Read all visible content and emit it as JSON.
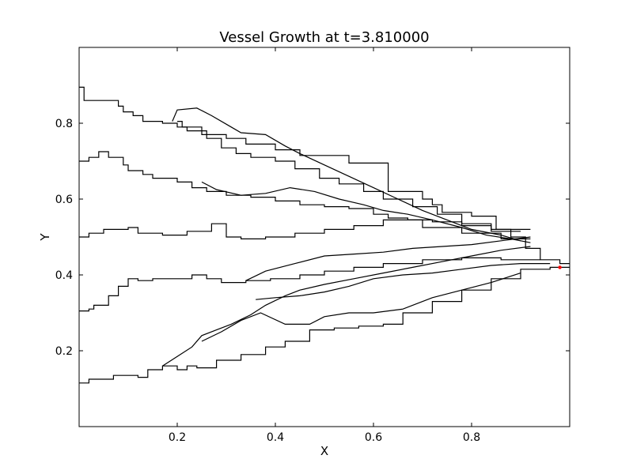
{
  "chart_data": {
    "type": "line",
    "title": "Vessel Growth at t=3.810000",
    "xlabel": "X",
    "ylabel": "Y",
    "xlim": [
      0,
      1
    ],
    "ylim": [
      0,
      1
    ],
    "xticks": [
      0.2,
      0.4,
      0.6,
      0.8
    ],
    "yticks": [
      0.2,
      0.4,
      0.6,
      0.8
    ],
    "xtick_labels": [
      "0.2",
      "0.4",
      "0.6",
      "0.8"
    ],
    "ytick_labels": [
      "0.2",
      "0.4",
      "0.6",
      "0.8"
    ],
    "grid": false,
    "line_color": "#000000",
    "tip_color": "#ff0000",
    "series": [
      {
        "x": [
          0.0,
          0.01,
          0.01,
          0.08,
          0.08,
          0.09,
          0.09,
          0.11,
          0.11,
          0.13,
          0.13,
          0.17,
          0.17,
          0.2,
          0.2,
          0.25,
          0.25,
          0.3,
          0.3,
          0.34,
          0.34,
          0.4,
          0.4,
          0.45,
          0.45,
          0.55,
          0.55,
          0.63,
          0.63,
          0.7,
          0.7,
          0.72,
          0.72,
          0.74,
          0.74,
          0.8,
          0.8,
          0.85,
          0.85,
          0.88,
          0.88,
          0.91,
          0.91,
          0.94,
          0.94,
          0.98,
          0.98,
          1.0
        ],
        "y": [
          0.895,
          0.895,
          0.86,
          0.86,
          0.845,
          0.845,
          0.83,
          0.83,
          0.82,
          0.82,
          0.805,
          0.805,
          0.8,
          0.8,
          0.79,
          0.79,
          0.77,
          0.77,
          0.76,
          0.76,
          0.745,
          0.745,
          0.73,
          0.73,
          0.715,
          0.715,
          0.695,
          0.695,
          0.62,
          0.62,
          0.6,
          0.6,
          0.585,
          0.585,
          0.565,
          0.565,
          0.555,
          0.555,
          0.52,
          0.52,
          0.5,
          0.5,
          0.47,
          0.47,
          0.44,
          0.44,
          0.43,
          0.43
        ]
      },
      {
        "x": [
          0.19,
          0.19,
          0.2,
          0.2,
          0.24,
          0.24,
          0.27,
          0.27,
          0.31,
          0.31,
          0.33,
          0.33,
          0.38,
          0.38,
          0.42,
          0.42,
          0.45,
          0.45,
          0.5,
          0.5,
          0.55,
          0.55,
          0.6,
          0.6,
          0.65,
          0.65,
          0.7,
          0.7,
          0.76,
          0.76,
          0.8,
          0.8,
          0.86,
          0.86,
          0.9,
          0.9
        ],
        "y": [
          0.805,
          0.805,
          0.835,
          0.835,
          0.84,
          0.84,
          0.82,
          0.82,
          0.79,
          0.79,
          0.775,
          0.775,
          0.77,
          0.77,
          0.74,
          0.74,
          0.72,
          0.72,
          0.69,
          0.69,
          0.66,
          0.66,
          0.63,
          0.63,
          0.6,
          0.6,
          0.57,
          0.57,
          0.54,
          0.54,
          0.52,
          0.52,
          0.505,
          0.505,
          0.49,
          0.49
        ]
      },
      {
        "x": [
          0.2,
          0.21,
          0.21,
          0.22,
          0.22,
          0.26,
          0.26,
          0.29,
          0.29,
          0.32,
          0.32,
          0.35,
          0.35,
          0.4,
          0.4,
          0.44,
          0.44,
          0.49,
          0.49,
          0.53,
          0.53,
          0.58,
          0.58,
          0.62,
          0.62,
          0.68,
          0.68,
          0.73,
          0.73,
          0.78,
          0.78,
          0.84,
          0.84,
          0.9
        ],
        "y": [
          0.805,
          0.805,
          0.79,
          0.79,
          0.78,
          0.78,
          0.76,
          0.76,
          0.735,
          0.735,
          0.72,
          0.72,
          0.71,
          0.71,
          0.7,
          0.7,
          0.68,
          0.68,
          0.655,
          0.655,
          0.64,
          0.64,
          0.62,
          0.62,
          0.6,
          0.6,
          0.58,
          0.58,
          0.56,
          0.56,
          0.535,
          0.535,
          0.515,
          0.515
        ]
      },
      {
        "x": [
          0.0,
          0.02,
          0.02,
          0.04,
          0.04,
          0.06,
          0.06,
          0.09,
          0.09,
          0.1,
          0.1,
          0.13,
          0.13,
          0.15,
          0.15,
          0.2,
          0.2,
          0.23,
          0.23,
          0.26,
          0.26,
          0.3,
          0.3,
          0.35,
          0.35,
          0.4,
          0.4,
          0.45,
          0.45,
          0.5,
          0.5,
          0.55,
          0.55,
          0.6,
          0.6,
          0.63,
          0.63,
          0.67,
          0.67,
          0.72,
          0.72,
          0.78,
          0.78,
          0.84,
          0.84,
          0.92
        ],
        "y": [
          0.7,
          0.7,
          0.71,
          0.71,
          0.725,
          0.725,
          0.71,
          0.71,
          0.69,
          0.69,
          0.675,
          0.675,
          0.665,
          0.665,
          0.655,
          0.655,
          0.645,
          0.645,
          0.63,
          0.63,
          0.62,
          0.62,
          0.61,
          0.61,
          0.605,
          0.605,
          0.595,
          0.595,
          0.585,
          0.585,
          0.58,
          0.58,
          0.575,
          0.575,
          0.56,
          0.56,
          0.55,
          0.55,
          0.545,
          0.545,
          0.54,
          0.54,
          0.53,
          0.53,
          0.52,
          0.52
        ]
      },
      {
        "x": [
          0.25,
          0.25,
          0.28,
          0.28,
          0.33,
          0.33,
          0.38,
          0.38,
          0.43,
          0.43,
          0.48,
          0.48,
          0.53,
          0.53,
          0.58,
          0.58,
          0.62,
          0.62,
          0.67,
          0.67,
          0.72,
          0.72,
          0.78,
          0.78,
          0.83,
          0.83,
          0.88,
          0.88,
          0.92
        ],
        "y": [
          0.645,
          0.645,
          0.625,
          0.625,
          0.61,
          0.61,
          0.615,
          0.615,
          0.63,
          0.63,
          0.62,
          0.62,
          0.6,
          0.6,
          0.585,
          0.585,
          0.57,
          0.57,
          0.56,
          0.56,
          0.545,
          0.545,
          0.525,
          0.525,
          0.505,
          0.505,
          0.495,
          0.495,
          0.485
        ]
      },
      {
        "x": [
          0.0,
          0.02,
          0.02,
          0.05,
          0.05,
          0.1,
          0.1,
          0.12,
          0.12,
          0.17,
          0.17,
          0.22,
          0.22,
          0.27,
          0.27,
          0.3,
          0.3,
          0.33,
          0.33,
          0.38,
          0.38,
          0.44,
          0.44,
          0.5,
          0.5,
          0.56,
          0.56,
          0.62,
          0.62,
          0.7,
          0.7,
          0.78,
          0.78,
          0.86,
          0.86,
          0.92
        ],
        "y": [
          0.5,
          0.5,
          0.51,
          0.51,
          0.52,
          0.52,
          0.525,
          0.525,
          0.51,
          0.51,
          0.505,
          0.505,
          0.515,
          0.515,
          0.535,
          0.535,
          0.5,
          0.5,
          0.495,
          0.495,
          0.5,
          0.5,
          0.51,
          0.51,
          0.52,
          0.52,
          0.53,
          0.53,
          0.545,
          0.545,
          0.525,
          0.525,
          0.51,
          0.51,
          0.495,
          0.495
        ]
      },
      {
        "x": [
          0.0,
          0.02,
          0.02,
          0.03,
          0.03,
          0.06,
          0.06,
          0.08,
          0.08,
          0.1,
          0.1,
          0.12,
          0.12,
          0.15,
          0.15,
          0.19,
          0.19,
          0.23,
          0.23,
          0.26,
          0.26,
          0.29,
          0.29,
          0.34,
          0.34,
          0.39,
          0.39,
          0.45,
          0.45,
          0.5,
          0.5,
          0.56,
          0.56,
          0.62,
          0.62,
          0.7,
          0.7,
          0.78,
          0.78,
          0.86,
          0.86,
          0.94
        ],
        "y": [
          0.305,
          0.305,
          0.31,
          0.31,
          0.32,
          0.32,
          0.345,
          0.345,
          0.37,
          0.37,
          0.39,
          0.39,
          0.385,
          0.385,
          0.39,
          0.39,
          0.39,
          0.39,
          0.4,
          0.4,
          0.39,
          0.39,
          0.38,
          0.38,
          0.385,
          0.385,
          0.39,
          0.39,
          0.4,
          0.4,
          0.41,
          0.41,
          0.42,
          0.42,
          0.43,
          0.43,
          0.44,
          0.44,
          0.445,
          0.445,
          0.44,
          0.44
        ]
      },
      {
        "x": [
          0.34,
          0.34,
          0.38,
          0.38,
          0.44,
          0.44,
          0.5,
          0.5,
          0.56,
          0.56,
          0.62,
          0.62,
          0.68,
          0.68,
          0.74,
          0.74,
          0.8,
          0.8,
          0.86,
          0.86,
          0.92
        ],
        "y": [
          0.385,
          0.385,
          0.41,
          0.41,
          0.43,
          0.43,
          0.45,
          0.45,
          0.455,
          0.455,
          0.46,
          0.46,
          0.47,
          0.47,
          0.475,
          0.475,
          0.48,
          0.48,
          0.49,
          0.49,
          0.5
        ]
      },
      {
        "x": [
          0.0,
          0.02,
          0.02,
          0.07,
          0.07,
          0.12,
          0.12,
          0.14,
          0.14,
          0.17,
          0.17,
          0.2,
          0.2,
          0.22,
          0.22,
          0.24,
          0.24,
          0.28,
          0.28,
          0.33,
          0.33,
          0.38,
          0.38,
          0.42,
          0.42,
          0.47,
          0.47,
          0.52,
          0.52,
          0.57,
          0.57,
          0.62,
          0.62,
          0.66,
          0.66,
          0.72,
          0.72,
          0.78,
          0.78,
          0.84,
          0.84,
          0.9,
          0.9,
          0.96,
          0.96,
          1.0
        ],
        "y": [
          0.115,
          0.115,
          0.125,
          0.125,
          0.135,
          0.135,
          0.13,
          0.13,
          0.15,
          0.15,
          0.16,
          0.16,
          0.15,
          0.15,
          0.16,
          0.16,
          0.155,
          0.155,
          0.175,
          0.175,
          0.19,
          0.19,
          0.21,
          0.21,
          0.225,
          0.225,
          0.255,
          0.255,
          0.26,
          0.26,
          0.265,
          0.265,
          0.27,
          0.27,
          0.3,
          0.3,
          0.33,
          0.33,
          0.36,
          0.36,
          0.39,
          0.39,
          0.415,
          0.415,
          0.42,
          0.42
        ]
      },
      {
        "x": [
          0.17,
          0.17,
          0.2,
          0.2,
          0.23,
          0.23,
          0.25,
          0.25,
          0.28,
          0.28,
          0.31,
          0.31,
          0.35,
          0.35,
          0.38,
          0.38,
          0.42,
          0.42,
          0.45,
          0.45,
          0.5,
          0.5,
          0.56,
          0.56,
          0.62,
          0.62,
          0.68,
          0.68,
          0.74,
          0.74,
          0.8,
          0.8,
          0.86,
          0.86,
          0.92
        ],
        "y": [
          0.16,
          0.16,
          0.185,
          0.185,
          0.21,
          0.21,
          0.24,
          0.24,
          0.255,
          0.255,
          0.27,
          0.27,
          0.295,
          0.295,
          0.32,
          0.32,
          0.345,
          0.345,
          0.36,
          0.36,
          0.375,
          0.375,
          0.39,
          0.39,
          0.405,
          0.405,
          0.42,
          0.42,
          0.435,
          0.435,
          0.45,
          0.45,
          0.465,
          0.465,
          0.475
        ]
      },
      {
        "x": [
          0.25,
          0.25,
          0.29,
          0.29,
          0.33,
          0.33,
          0.37,
          0.37,
          0.42,
          0.42,
          0.47,
          0.47,
          0.5,
          0.5,
          0.55,
          0.55,
          0.6,
          0.6,
          0.66,
          0.66,
          0.72,
          0.72,
          0.78,
          0.78,
          0.84,
          0.84,
          0.9
        ],
        "y": [
          0.225,
          0.225,
          0.25,
          0.25,
          0.28,
          0.28,
          0.3,
          0.3,
          0.27,
          0.27,
          0.27,
          0.27,
          0.29,
          0.29,
          0.3,
          0.3,
          0.3,
          0.3,
          0.31,
          0.31,
          0.34,
          0.34,
          0.36,
          0.36,
          0.38,
          0.38,
          0.405
        ]
      },
      {
        "x": [
          0.36,
          0.36,
          0.4,
          0.4,
          0.45,
          0.45,
          0.5,
          0.5,
          0.55,
          0.55,
          0.6,
          0.6,
          0.66,
          0.66,
          0.72,
          0.72,
          0.78,
          0.78,
          0.84,
          0.84,
          0.9,
          0.9,
          0.96
        ],
        "y": [
          0.335,
          0.335,
          0.34,
          0.34,
          0.345,
          0.345,
          0.355,
          0.355,
          0.37,
          0.37,
          0.39,
          0.39,
          0.4,
          0.4,
          0.405,
          0.405,
          0.415,
          0.415,
          0.425,
          0.425,
          0.43,
          0.43,
          0.43
        ]
      }
    ]
  }
}
